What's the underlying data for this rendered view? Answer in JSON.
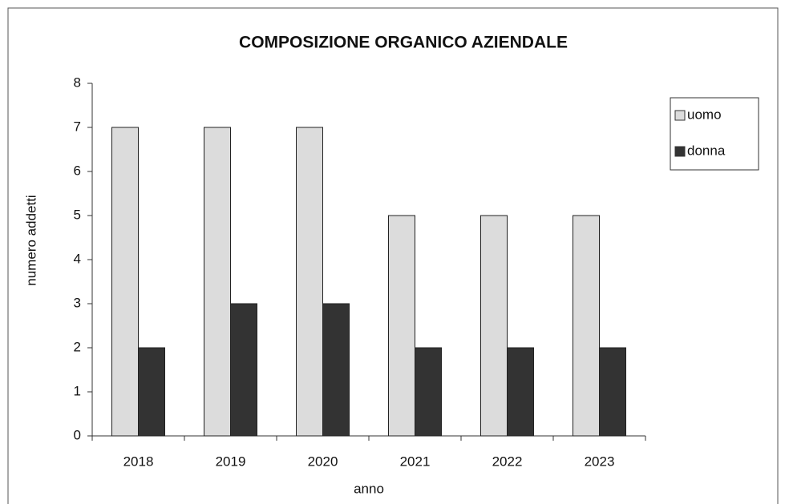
{
  "chart_data": {
    "type": "bar",
    "title": "COMPOSIZIONE ORGANICO AZIENDALE",
    "x_label": "anno",
    "y_label": "numero addetti",
    "categories": [
      "2018",
      "2019",
      "2020",
      "2021",
      "2022",
      "2023"
    ],
    "series": [
      {
        "name": "uomo",
        "color": "#dcdcdc",
        "values": [
          7,
          7,
          7,
          5,
          5,
          5
        ]
      },
      {
        "name": "donna",
        "color": "#333333",
        "values": [
          2,
          3,
          3,
          2,
          2,
          2
        ]
      }
    ],
    "ylim": [
      0,
      8
    ],
    "yticks": [
      0,
      1,
      2,
      3,
      4,
      5,
      6,
      7,
      8
    ],
    "grid": false,
    "legend": "right"
  }
}
